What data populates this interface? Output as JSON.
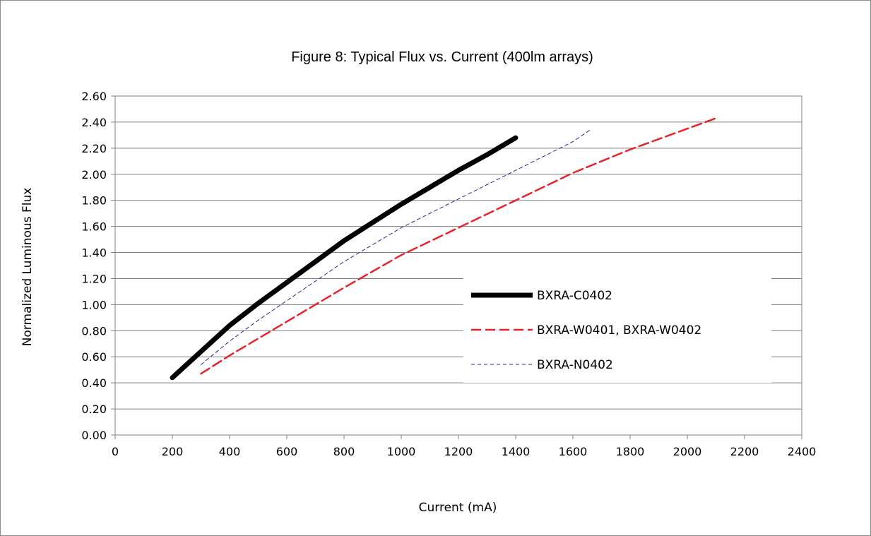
{
  "chart_data": {
    "type": "line",
    "title": "Figure 8:  Typical Flux vs. Current (400lm arrays)",
    "xlabel": "Current (mA)",
    "ylabel": "Normalized Luminous Flux",
    "xlim": [
      0,
      2400
    ],
    "ylim": [
      0,
      2.6
    ],
    "x_ticks": [
      "0",
      "200",
      "400",
      "600",
      "800",
      "1000",
      "1200",
      "1400",
      "1600",
      "1800",
      "2000",
      "2200",
      "2400"
    ],
    "y_ticks": [
      "0.00",
      "0.20",
      "0.40",
      "0.60",
      "0.80",
      "1.00",
      "1.20",
      "1.40",
      "1.60",
      "1.80",
      "2.00",
      "2.20",
      "2.40",
      "2.60"
    ],
    "grid": "horizontal",
    "legend_position": "center-right",
    "series": [
      {
        "name": "BXRA-C0402",
        "color": "#000000",
        "style": "solid-thick",
        "x": [
          200,
          300,
          400,
          500,
          600,
          700,
          800,
          900,
          1000,
          1100,
          1200,
          1300,
          1400
        ],
        "y": [
          0.44,
          0.64,
          0.84,
          1.01,
          1.17,
          1.33,
          1.49,
          1.63,
          1.77,
          1.9,
          2.03,
          2.15,
          2.28
        ]
      },
      {
        "name": "BXRA-W0401, BXRA-W0402",
        "color": "#e8232a",
        "style": "dashed",
        "x": [
          300,
          400,
          500,
          600,
          800,
          1000,
          1200,
          1400,
          1600,
          1800,
          2000,
          2100
        ],
        "y": [
          0.47,
          0.61,
          0.74,
          0.87,
          1.13,
          1.38,
          1.59,
          1.8,
          2.01,
          2.19,
          2.35,
          2.43
        ]
      },
      {
        "name": "BXRA-N0402",
        "color": "#1f2f8a",
        "style": "dashed-thin",
        "x": [
          300,
          400,
          500,
          600,
          800,
          1000,
          1200,
          1400,
          1600,
          1660
        ],
        "y": [
          0.54,
          0.72,
          0.88,
          1.03,
          1.33,
          1.59,
          1.81,
          2.03,
          2.25,
          2.34
        ]
      }
    ]
  }
}
